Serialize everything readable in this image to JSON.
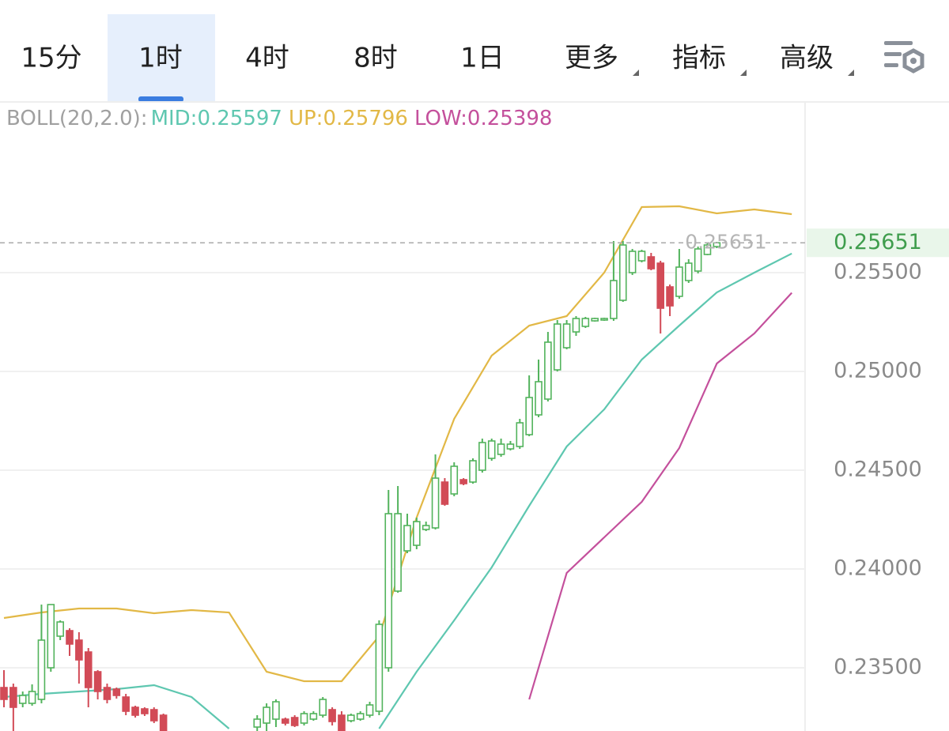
{
  "tabs": [
    "15分",
    "1时",
    "4时",
    "8时",
    "1日",
    "更多",
    "指标",
    "高级"
  ],
  "active_tab": 1,
  "chart_data": {
    "type": "candlestick",
    "indicator": "BOLL(20,2.0):",
    "up_color": "#52b35c",
    "down_color": "#d24b57",
    "ylim": [
      0.2318,
      0.2636
    ],
    "yticks": [
      {
        "value": 0.255,
        "label": "0.25500"
      },
      {
        "value": 0.25,
        "label": "0.25000"
      },
      {
        "value": 0.245,
        "label": "0.24500"
      },
      {
        "value": 0.24,
        "label": "0.24000"
      },
      {
        "value": 0.235,
        "label": "0.23500"
      }
    ],
    "grid": true,
    "last_price": {
      "value": 0.25651,
      "label": "0.25651"
    },
    "candles": {
      "open": [
        0.234,
        0.234,
        0.2332,
        0.2332,
        0.2334,
        0.235,
        0.2366,
        0.23688,
        0.2364,
        0.2358,
        0.2348,
        0.234,
        0.23392,
        0.23352,
        0.233,
        0.23292,
        0.23288,
        0.2326,
        null,
        null,
        null,
        null,
        null,
        null,
        null,
        null,
        null,
        0.232,
        0.2322,
        0.2324,
        0.2324,
        0.23248,
        0.2322,
        0.2324,
        0.2326,
        0.23288,
        0.2326,
        0.23232,
        0.2324,
        0.2326,
        0.2328,
        0.235,
        0.23888,
        0.24092,
        0.2412,
        0.242,
        0.24208,
        0.2444,
        0.2438,
        0.24452,
        0.2444,
        0.245,
        0.2456,
        0.2458,
        0.24608,
        0.2462,
        0.2468,
        0.2478,
        0.2486,
        0.25008,
        0.2512,
        0.252,
        0.25228,
        0.25256,
        0.2526,
        0.25268,
        0.2536,
        0.255,
        0.2556,
        0.2558,
        0.25548,
        0.25428,
        0.2538,
        0.2546,
        0.25508,
        0.25592,
        0.25632
      ],
      "high": [
        0.23488,
        0.2342,
        0.2338,
        0.23416,
        0.2382,
        0.2382,
        0.2374,
        0.237,
        0.2368,
        0.236,
        0.23488,
        0.2342,
        0.234,
        0.23368,
        0.23308,
        0.233,
        0.233,
        0.23268,
        null,
        null,
        null,
        null,
        null,
        null,
        null,
        null,
        null,
        0.2326,
        0.2332,
        0.2334,
        0.23248,
        0.2326,
        0.2328,
        0.2328,
        0.23352,
        0.233,
        0.2328,
        0.23268,
        0.2328,
        0.23328,
        0.2374,
        0.244,
        0.2442,
        0.2428,
        0.2426,
        0.2424,
        0.2458,
        0.2446,
        0.2454,
        0.2446,
        0.2456,
        0.2466,
        0.2466,
        0.2466,
        0.24648,
        0.2476,
        0.2498,
        0.2506,
        0.252,
        0.2526,
        0.2526,
        0.2528,
        0.25276,
        0.25272,
        0.25272,
        0.2566,
        0.2566,
        0.2562,
        0.25616,
        0.256,
        0.2556,
        0.2544,
        0.2562,
        0.25568,
        0.25632,
        0.25648,
        0.25656
      ],
      "low": [
        0.233,
        0.2318,
        0.233,
        0.23308,
        0.2332,
        0.2348,
        0.2364,
        0.2356,
        0.2342,
        0.233,
        0.2334,
        0.2332,
        0.23344,
        0.2326,
        0.23248,
        0.23256,
        0.2322,
        0.2318,
        null,
        null,
        null,
        null,
        null,
        null,
        null,
        null,
        null,
        0.2318,
        0.2318,
        0.232,
        0.23208,
        0.232,
        0.23208,
        0.23232,
        0.23248,
        0.23208,
        0.2318,
        0.23224,
        0.23232,
        0.23248,
        0.2326,
        0.2348,
        0.2388,
        0.2408,
        0.241,
        0.24192,
        0.242,
        0.2432,
        0.24368,
        0.24424,
        0.24432,
        0.24488,
        0.24548,
        0.24568,
        0.246,
        0.24608,
        0.24672,
        0.24768,
        0.24848,
        0.25,
        0.25112,
        0.2518,
        0.2522,
        0.25252,
        0.25256,
        0.25256,
        0.25352,
        0.25488,
        0.25552,
        0.25512,
        0.25192,
        0.2528,
        0.25368,
        0.25448,
        0.25496,
        0.25588,
        0.25624
      ],
      "close": [
        0.2334,
        0.233,
        0.2336,
        0.2338,
        0.2364,
        0.2382,
        0.23732,
        0.2362,
        0.2354,
        0.234,
        0.2338,
        0.2334,
        0.2336,
        0.2328,
        0.2326,
        0.23268,
        0.23232,
        0.2318,
        null,
        null,
        null,
        null,
        null,
        null,
        null,
        null,
        null,
        0.2324,
        0.233,
        0.23328,
        0.2322,
        0.23208,
        0.23268,
        0.23268,
        0.2334,
        0.23228,
        0.2318,
        0.2326,
        0.23268,
        0.23312,
        0.2372,
        0.2428,
        0.2428,
        0.2422,
        0.2424,
        0.2422,
        0.2446,
        0.24328,
        0.2452,
        0.24432,
        0.24548,
        0.2464,
        0.24648,
        0.24632,
        0.24632,
        0.2474,
        0.24868,
        0.24948,
        0.25148,
        0.2524,
        0.2524,
        0.25268,
        0.25268,
        0.25268,
        0.25268,
        0.2546,
        0.2564,
        0.25608,
        0.25608,
        0.2552,
        0.2532,
        0.25332,
        0.25528,
        0.25548,
        0.2562,
        0.2564,
        0.25651
      ]
    },
    "series": [
      {
        "name": "MID:0.25597",
        "color": "#5ec7b0",
        "x": [
          0,
          4,
          8,
          12,
          16,
          20,
          24,
          28,
          32,
          36,
          40,
          44,
          48,
          52,
          56,
          60,
          64,
          68,
          72,
          76,
          80,
          84
        ],
        "values": [
          0.23352,
          0.23368,
          0.2338,
          0.23392,
          0.23412,
          0.23352,
          0.23192,
          null,
          null,
          null,
          0.23192,
          0.2348,
          0.2374,
          0.24008,
          0.2432,
          0.2462,
          0.24808,
          0.2506,
          0.25232,
          0.254,
          0.255,
          0.25597
        ]
      },
      {
        "name": "UP:0.25796",
        "color": "#e2b846",
        "x": [
          0,
          4,
          8,
          12,
          16,
          20,
          24,
          28,
          32,
          36,
          40,
          44,
          48,
          52,
          56,
          60,
          64,
          68,
          72,
          76,
          80,
          84
        ],
        "values": [
          0.23752,
          0.2378,
          0.238,
          0.238,
          0.23776,
          0.23792,
          0.2378,
          0.2348,
          0.23432,
          0.23432,
          0.2366,
          0.2426,
          0.2476,
          0.2508,
          0.25232,
          0.2528,
          0.255,
          0.25832,
          0.25836,
          0.258,
          0.2582,
          0.25796
        ]
      },
      {
        "name": "LOW:0.25398",
        "color": "#c4509c",
        "x": [
          0,
          4,
          8,
          12,
          16,
          20,
          24,
          28,
          32,
          36,
          40,
          44,
          48,
          52,
          56,
          60,
          64,
          68,
          72,
          76,
          80,
          84
        ],
        "values": [
          null,
          null,
          null,
          null,
          null,
          null,
          null,
          null,
          null,
          null,
          null,
          null,
          null,
          null,
          0.2334,
          0.2398,
          0.2416,
          0.2434,
          0.24612,
          0.2504,
          0.25192,
          0.25398
        ]
      }
    ]
  }
}
